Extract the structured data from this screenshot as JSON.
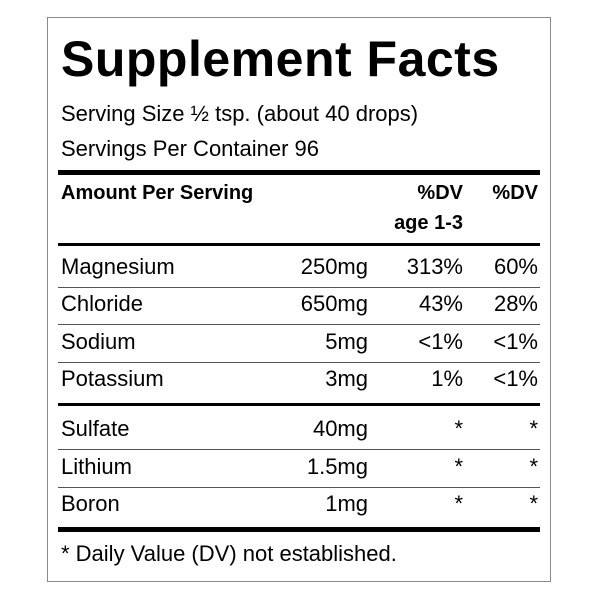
{
  "title": "Supplement Facts",
  "serving_size": "Serving Size ½ tsp. (about 40 drops)",
  "servings_per_container": "Servings Per Container 96",
  "header": {
    "amount_label": "Amount Per Serving",
    "dv_child_line1": "%DV",
    "dv_child_line2": "age 1-3",
    "dv_adult": "%DV"
  },
  "nutrients": [
    {
      "name": "Magnesium",
      "amount": "250mg",
      "dv_child": "313%",
      "dv_adult": "60%"
    },
    {
      "name": "Chloride",
      "amount": "650mg",
      "dv_child": "43%",
      "dv_adult": "28%"
    },
    {
      "name": "Sodium",
      "amount": "5mg",
      "dv_child": "<1%",
      "dv_adult": "<1%"
    },
    {
      "name": "Potassium",
      "amount": "3mg",
      "dv_child": "1%",
      "dv_adult": "<1%"
    }
  ],
  "other_nutrients": [
    {
      "name": "Sulfate",
      "amount": "40mg",
      "dv_child": "*",
      "dv_adult": "*"
    },
    {
      "name": "Lithium",
      "amount": "1.5mg",
      "dv_child": "*",
      "dv_adult": "*"
    },
    {
      "name": "Boron",
      "amount": "1mg",
      "dv_child": "*",
      "dv_adult": "*"
    }
  ],
  "footnote": "* Daily Value (DV) not established."
}
